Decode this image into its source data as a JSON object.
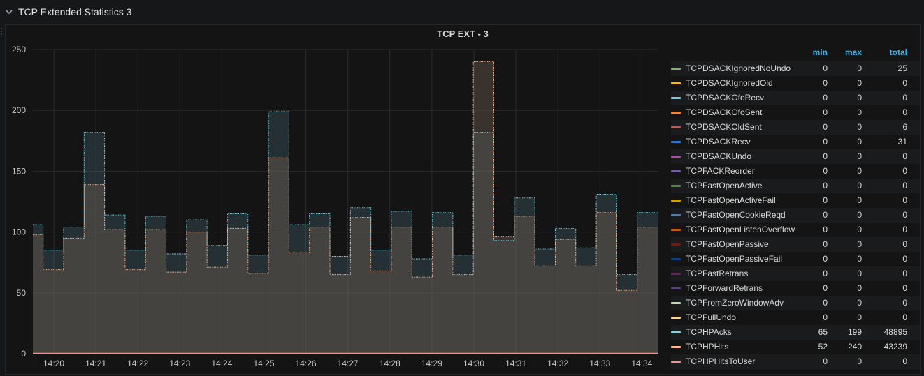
{
  "row": {
    "title": "TCP Extended Statistics 3"
  },
  "panel": {
    "title": "TCP EXT - 3"
  },
  "legend": {
    "headers": {
      "min": "min",
      "max": "max",
      "total": "total"
    },
    "items": [
      {
        "name": "TCPDSACKIgnoredNoUndo",
        "color": "#7eb26d",
        "min": "0",
        "max": "0",
        "total": "25"
      },
      {
        "name": "TCPDSACKIgnoredOld",
        "color": "#eab839",
        "min": "0",
        "max": "0",
        "total": "0"
      },
      {
        "name": "TCPDSACKOfoRecv",
        "color": "#6ed0e0",
        "min": "0",
        "max": "0",
        "total": "0"
      },
      {
        "name": "TCPDSACKOfoSent",
        "color": "#ef843c",
        "min": "0",
        "max": "0",
        "total": "0"
      },
      {
        "name": "TCPDSACKOldSent",
        "color": "#e24d42",
        "min": "0",
        "max": "0",
        "total": "6"
      },
      {
        "name": "TCPDSACKRecv",
        "color": "#1f78c1",
        "min": "0",
        "max": "0",
        "total": "31"
      },
      {
        "name": "TCPDSACKUndo",
        "color": "#ba43a9",
        "min": "0",
        "max": "0",
        "total": "0"
      },
      {
        "name": "TCPFACKReorder",
        "color": "#705da0",
        "min": "0",
        "max": "0",
        "total": "0"
      },
      {
        "name": "TCPFastOpenActive",
        "color": "#508642",
        "min": "0",
        "max": "0",
        "total": "0"
      },
      {
        "name": "TCPFastOpenActiveFail",
        "color": "#cca300",
        "min": "0",
        "max": "0",
        "total": "0"
      },
      {
        "name": "TCPFastOpenCookieReqd",
        "color": "#447ebc",
        "min": "0",
        "max": "0",
        "total": "0"
      },
      {
        "name": "TCPFastOpenListenOverflow",
        "color": "#c15c17",
        "min": "0",
        "max": "0",
        "total": "0"
      },
      {
        "name": "TCPFastOpenPassive",
        "color": "#890f02",
        "min": "0",
        "max": "0",
        "total": "0"
      },
      {
        "name": "TCPFastOpenPassiveFail",
        "color": "#0a437c",
        "min": "0",
        "max": "0",
        "total": "0"
      },
      {
        "name": "TCPFastRetrans",
        "color": "#6d1f62",
        "min": "0",
        "max": "0",
        "total": "0"
      },
      {
        "name": "TCPForwardRetrans",
        "color": "#584477",
        "min": "0",
        "max": "0",
        "total": "0"
      },
      {
        "name": "TCPFromZeroWindowAdv",
        "color": "#b7dbab",
        "min": "0",
        "max": "0",
        "total": "0"
      },
      {
        "name": "TCPFullUndo",
        "color": "#f4d598",
        "min": "0",
        "max": "0",
        "total": "0"
      },
      {
        "name": "TCPHPAcks",
        "color": "#70dbed",
        "min": "65",
        "max": "199",
        "total": "48895"
      },
      {
        "name": "TCPHPHits",
        "color": "#f9ba8f",
        "min": "52",
        "max": "240",
        "total": "43239"
      },
      {
        "name": "TCPHPHitsToUser",
        "color": "#f29191",
        "min": "0",
        "max": "0",
        "total": "0"
      }
    ]
  },
  "chart_data": {
    "type": "line",
    "ylim": [
      0,
      250
    ],
    "yticks": [
      "0",
      "50",
      "100",
      "150",
      "200",
      "250"
    ],
    "xticks": [
      "14:20",
      "14:21",
      "14:22",
      "14:23",
      "14:24",
      "14:25",
      "14:26",
      "14:27",
      "14:28",
      "14:29",
      "14:30",
      "14:31",
      "14:32",
      "14:33",
      "14:34"
    ],
    "grid": true,
    "legend_placement": "right",
    "series": [
      {
        "name": "TCPHPAcks",
        "color": "#70dbed",
        "values": [
          106,
          85,
          104,
          182,
          114,
          85,
          113,
          82,
          110,
          89,
          115,
          81,
          199,
          106,
          115,
          80,
          120,
          85,
          117,
          78,
          116,
          81,
          182,
          93,
          128,
          86,
          103,
          87,
          131,
          65,
          116
        ]
      },
      {
        "name": "TCPHPHits",
        "color": "#f9ba8f",
        "values": [
          98,
          69,
          95,
          139,
          102,
          69,
          102,
          67,
          100,
          71,
          103,
          66,
          161,
          83,
          104,
          65,
          112,
          68,
          104,
          63,
          104,
          65,
          240,
          96,
          113,
          72,
          94,
          72,
          116,
          52,
          104
        ]
      }
    ]
  }
}
